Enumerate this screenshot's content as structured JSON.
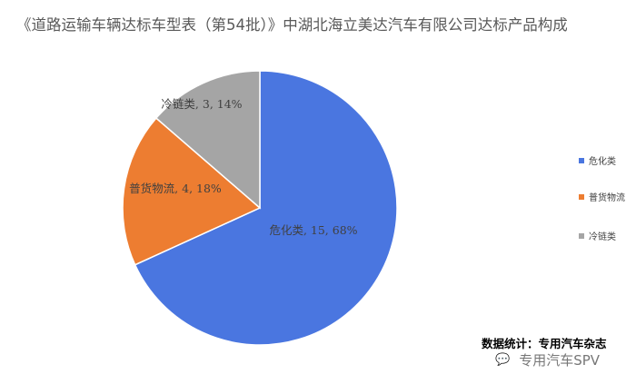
{
  "chart_data": {
    "type": "pie",
    "title": "《道路运输车辆达标车型表（第54批）》中湖北海立美达汽车有限公司达标产品构成",
    "slices": [
      {
        "label": "危化类",
        "value": 15,
        "percent": "68%",
        "color": "#4A76E0"
      },
      {
        "label": "普货物流",
        "value": 4,
        "percent": "18%",
        "color": "#ED7D31"
      },
      {
        "label": "冷链类",
        "value": 3,
        "percent": "14%",
        "color": "#A5A5A5"
      }
    ],
    "start_angle": "12 o'clock",
    "direction": "clockwise",
    "legend_position": "right"
  },
  "footer": {
    "source": "数据统计：专用汽车杂志",
    "watermark": "专用汽车SPV",
    "watermark_icon": "wechat-icon"
  }
}
